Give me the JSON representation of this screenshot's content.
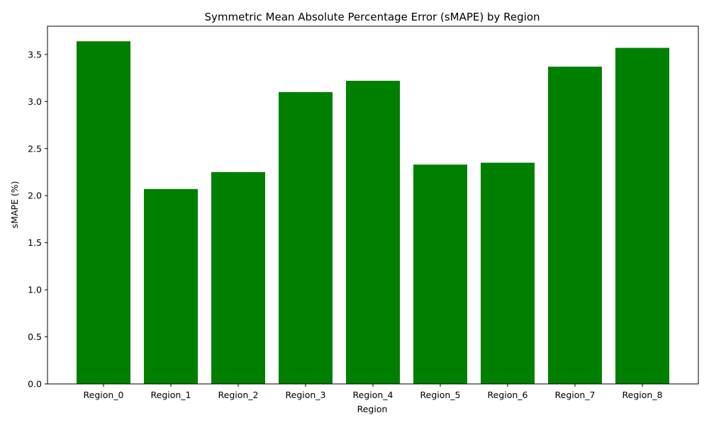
{
  "chart_data": {
    "type": "bar",
    "title": "Symmetric Mean Absolute Percentage Error (sMAPE) by Region",
    "xlabel": "Region",
    "ylabel": "sMAPE (%)",
    "categories": [
      "Region_0",
      "Region_1",
      "Region_2",
      "Region_3",
      "Region_4",
      "Region_5",
      "Region_6",
      "Region_7",
      "Region_8"
    ],
    "values": [
      3.64,
      2.07,
      2.25,
      3.1,
      3.22,
      2.33,
      2.35,
      3.37,
      3.57
    ],
    "ylim": [
      0,
      3.8
    ],
    "yticks": [
      0.0,
      0.5,
      1.0,
      1.5,
      2.0,
      2.5,
      3.0,
      3.5
    ],
    "ytick_labels": [
      "0.0",
      "0.5",
      "1.0",
      "1.5",
      "2.0",
      "2.5",
      "3.0",
      "3.5"
    ],
    "grid": false,
    "bar_color": "#008000"
  }
}
